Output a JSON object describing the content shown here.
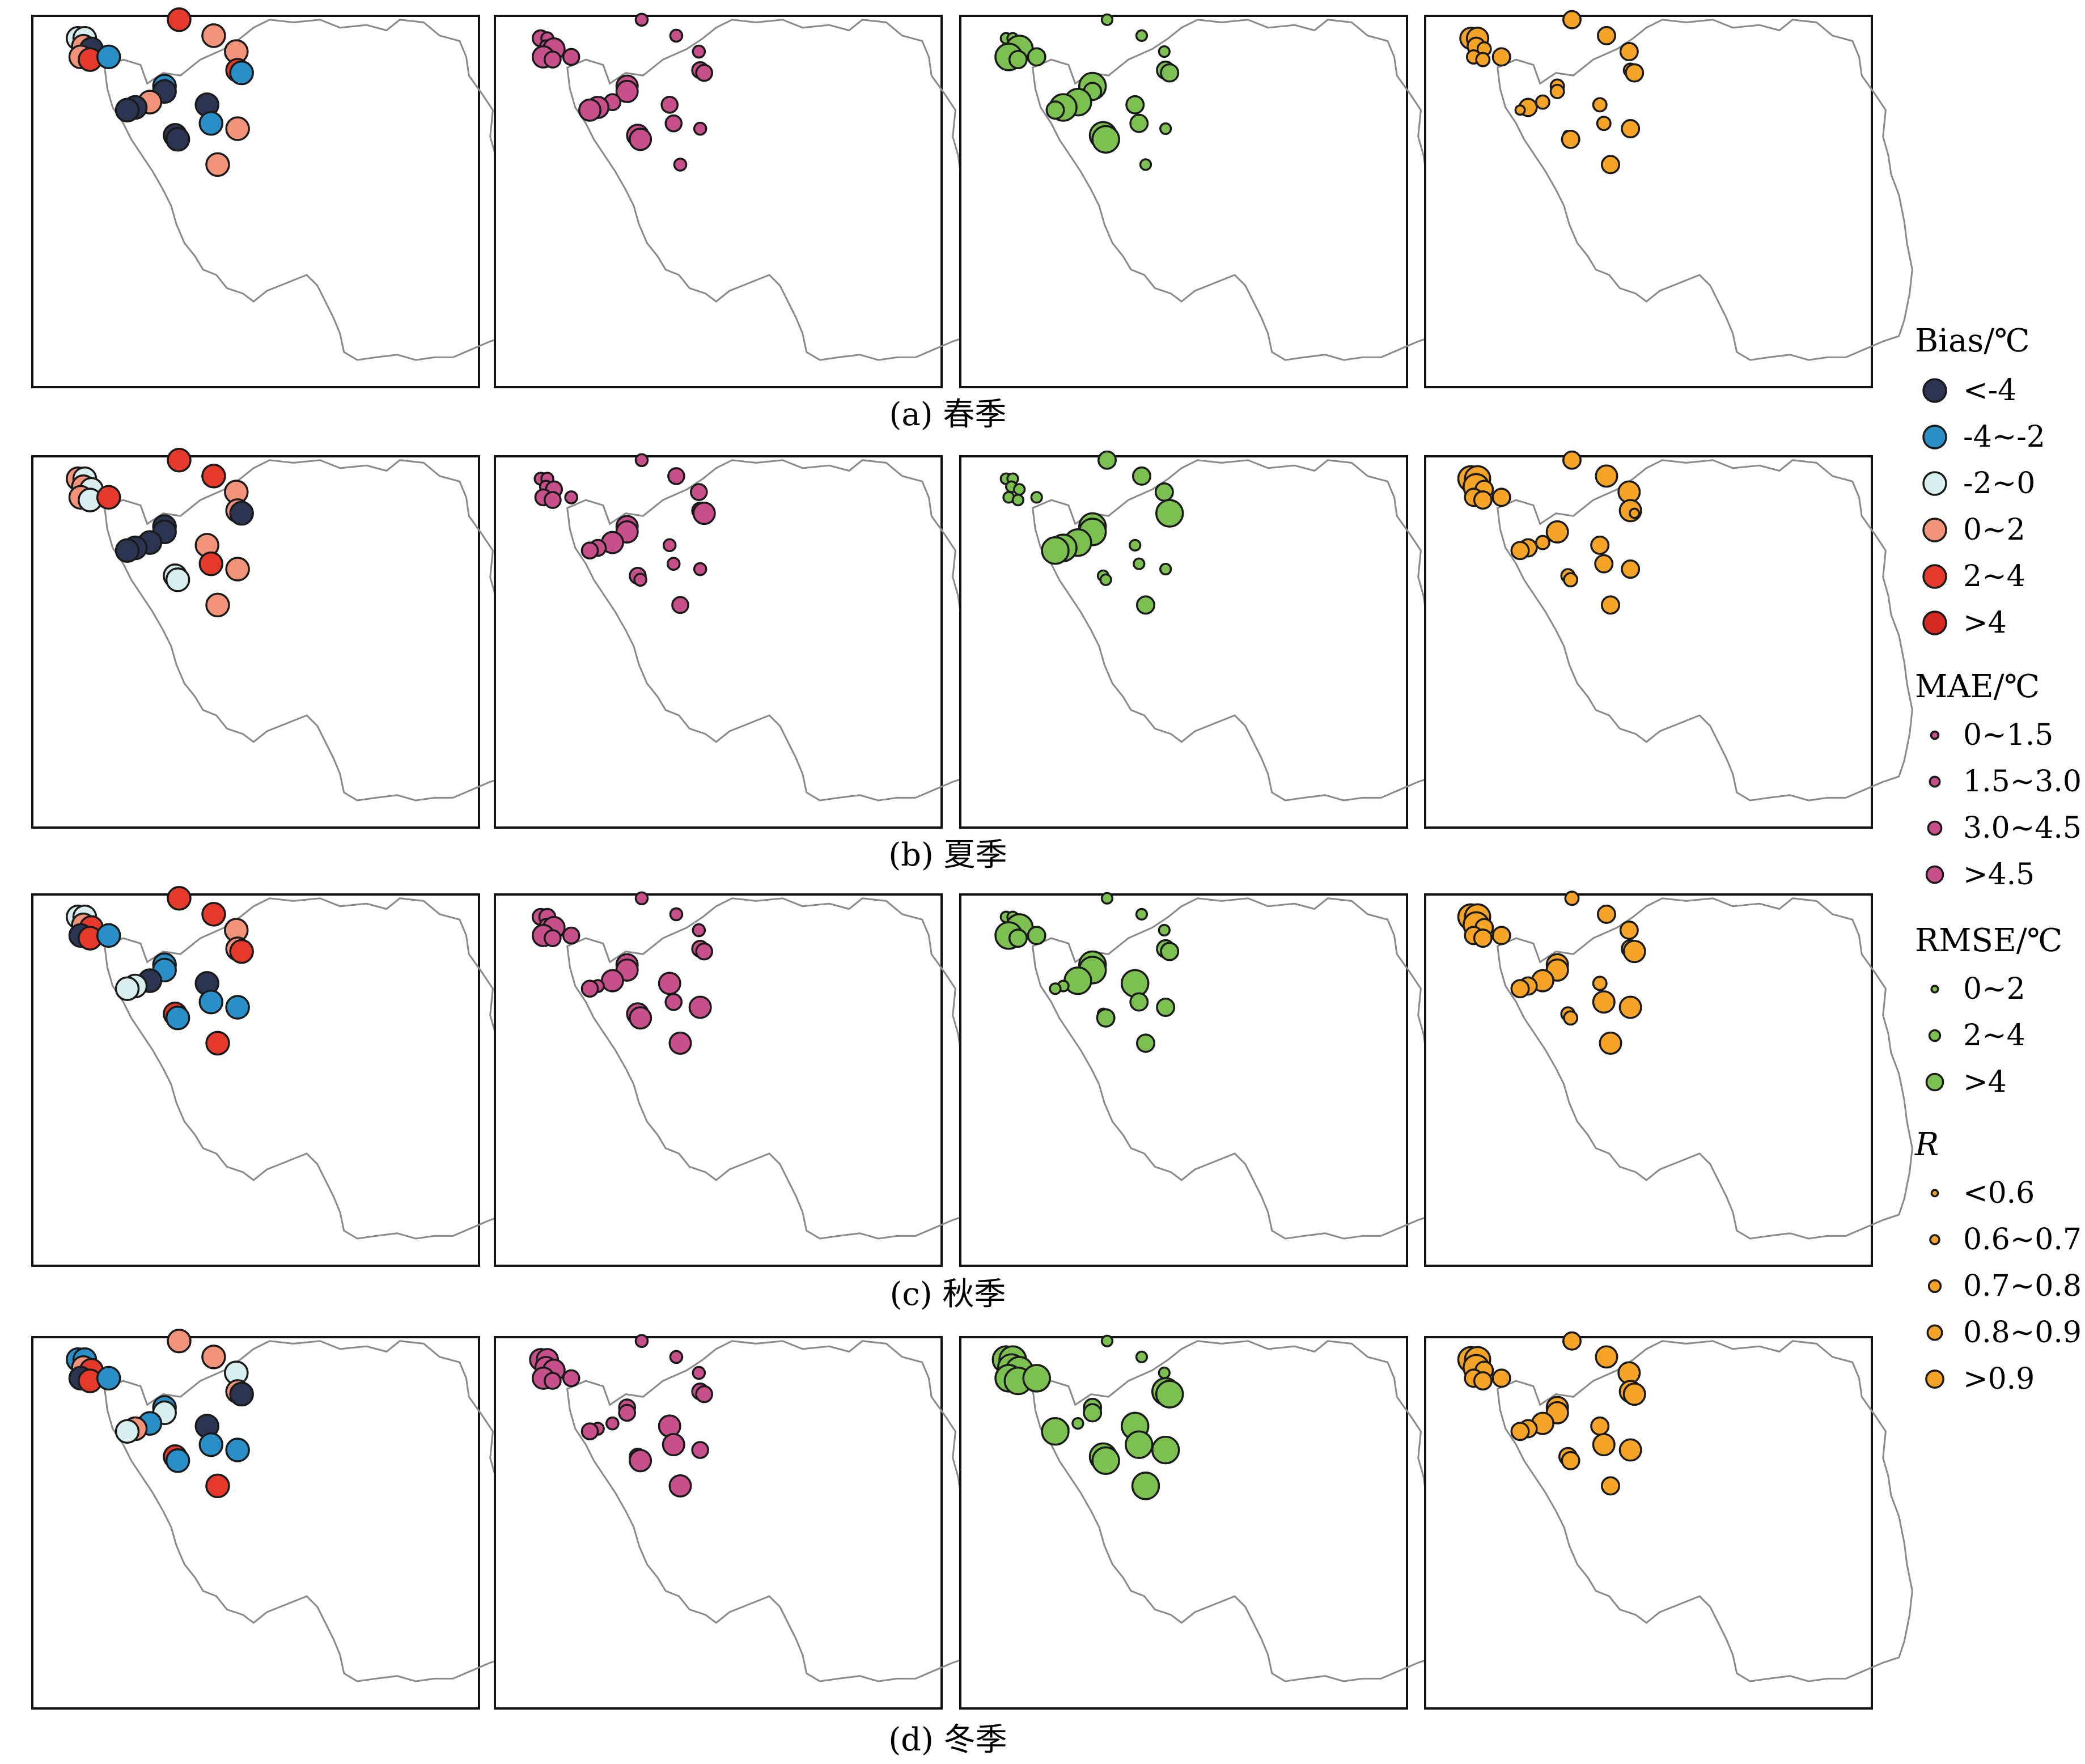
{
  "coastline_color": "#8a8a8a",
  "stroke_color": "#1a1a1a",
  "legend": {
    "bias": {
      "title": "Bias/℃",
      "items": [
        {
          "label": "<-4",
          "color": "#2b3450"
        },
        {
          "label": "-4~-2",
          "color": "#2a8fc7"
        },
        {
          "label": "-2~0",
          "color": "#d9eeee"
        },
        {
          "label": "0~2",
          "color": "#f2937a"
        },
        {
          "label": "2~4",
          "color": "#e5392b"
        },
        {
          "label": ">4",
          "color": "#d52a24"
        }
      ]
    },
    "mae": {
      "title": "MAE/℃",
      "color": "#c7508a",
      "items": [
        {
          "label": "0~1.5",
          "level": 1
        },
        {
          "label": "1.5~3.0",
          "level": 2
        },
        {
          "label": "3.0~4.5",
          "level": 3
        },
        {
          "label": ">4.5",
          "level": 4
        }
      ]
    },
    "rmse": {
      "title": "RMSE/℃",
      "color": "#7cc052",
      "items": [
        {
          "label": "0~2",
          "level": 1
        },
        {
          "label": "2~4",
          "level": 2
        },
        {
          "label": ">4",
          "level": 3
        }
      ]
    },
    "r": {
      "title": "R",
      "color": "#f6a428",
      "items": [
        {
          "label": "<0.6",
          "level": 1
        },
        {
          "label": "0.6~0.7",
          "level": 2
        },
        {
          "label": "0.7~0.8",
          "level": 3
        },
        {
          "label": "0.8~0.9",
          "level": 4
        },
        {
          "label": ">0.9",
          "level": 5
        }
      ]
    }
  },
  "rows": [
    {
      "caption": "(a) 春季",
      "bias": [
        "-2~0",
        "-2~0",
        "0~2",
        "<-4",
        "0~2",
        "2~4",
        "-4~-2",
        "2~4",
        "0~2",
        "0~2",
        "2~4",
        "-4~-2",
        "-4~-2",
        "<-4",
        "0~2",
        "<-4",
        "<-4",
        "<-4",
        "<-4",
        "<-4",
        "-4~-2",
        "0~2",
        "0~2"
      ],
      "mae": [
        2,
        1,
        1,
        3,
        3,
        2,
        2,
        1,
        1,
        1,
        2,
        2,
        3,
        3,
        2,
        3,
        3,
        3,
        3,
        2,
        2,
        1,
        1
      ],
      "rmse": [
        1,
        1,
        1,
        3,
        3,
        2,
        2,
        1,
        1,
        1,
        2,
        2,
        3,
        2,
        3,
        3,
        2,
        3,
        3,
        2,
        2,
        1,
        1
      ],
      "r": [
        4,
        4,
        3,
        2,
        2,
        2,
        3,
        3,
        3,
        3,
        2,
        3,
        2,
        2,
        2,
        3,
        1,
        1,
        3,
        2,
        2,
        3,
        3
      ]
    },
    {
      "caption": "(b) 夏季",
      "bias": [
        "0~2",
        "-2~0",
        "0~2",
        "-2~0",
        "0~2",
        "-2~0",
        "2~4",
        "2~4",
        "2~4",
        "0~2",
        "0~2",
        "<-4",
        "<-4",
        "<-4",
        "<-4",
        "<-4",
        "<-4",
        "-2~0",
        "-2~0",
        "0~2",
        "2~4",
        "0~2",
        "0~2"
      ],
      "mae": [
        1,
        1,
        1,
        2,
        2,
        2,
        1,
        1,
        2,
        2,
        2,
        3,
        3,
        3,
        3,
        2,
        2,
        2,
        1,
        1,
        1,
        1,
        2
      ],
      "rmse": [
        1,
        1,
        1,
        1,
        1,
        1,
        1,
        2,
        2,
        2,
        2,
        3,
        3,
        3,
        3,
        3,
        3,
        1,
        1,
        1,
        1,
        1,
        2
      ],
      "r": [
        5,
        5,
        5,
        3,
        3,
        3,
        3,
        3,
        4,
        4,
        4,
        1,
        1,
        4,
        2,
        3,
        3,
        2,
        2,
        3,
        3,
        3,
        3
      ]
    },
    {
      "caption": "(c) 秋季",
      "bias": [
        "-2~0",
        "-2~0",
        "0~2",
        "2~4",
        "<-4",
        "2~4",
        "-4~-2",
        "2~4",
        "2~4",
        "0~2",
        "0~2",
        "2~4",
        "-4~-2",
        "-4~-2",
        "<-4",
        "-2~0",
        "-2~0",
        "2~4",
        "-4~-2",
        "<-4",
        "-4~-2",
        "-4~-2",
        "2~4"
      ],
      "mae": [
        2,
        2,
        1,
        3,
        3,
        2,
        2,
        1,
        1,
        1,
        2,
        2,
        3,
        3,
        3,
        1,
        2,
        3,
        3,
        3,
        2,
        3,
        3
      ],
      "rmse": [
        1,
        1,
        1,
        3,
        3,
        2,
        2,
        1,
        1,
        1,
        2,
        2,
        3,
        3,
        3,
        1,
        1,
        1,
        2,
        3,
        2,
        2,
        2
      ],
      "r": [
        5,
        5,
        5,
        3,
        3,
        3,
        3,
        2,
        3,
        3,
        3,
        4,
        4,
        4,
        4,
        3,
        3,
        2,
        2,
        2,
        4,
        4,
        4
      ]
    },
    {
      "caption": "(d) 冬季",
      "bias": [
        "-4~-2",
        "-4~-2",
        "0~2",
        "2~4",
        "<-4",
        "2~4",
        "-4~-2",
        "0~2",
        "0~2",
        "-2~0",
        "0~2",
        "<-4",
        "-4~-2",
        "-2~0",
        "-4~-2",
        "0~2",
        "-2~0",
        "2~4",
        "-4~-2",
        "<-4",
        "-4~-2",
        "-4~-2",
        "2~4"
      ],
      "mae": [
        3,
        3,
        3,
        3,
        3,
        2,
        2,
        1,
        1,
        1,
        2,
        2,
        2,
        2,
        1,
        1,
        2,
        2,
        3,
        3,
        3,
        2,
        3
      ],
      "rmse": [
        3,
        3,
        3,
        3,
        3,
        3,
        3,
        1,
        1,
        1,
        3,
        3,
        2,
        2,
        1,
        1,
        3,
        3,
        3,
        3,
        3,
        3,
        3
      ],
      "r": [
        5,
        5,
        5,
        3,
        3,
        3,
        3,
        3,
        4,
        4,
        4,
        4,
        4,
        4,
        4,
        3,
        3,
        3,
        3,
        3,
        4,
        4,
        3
      ]
    }
  ]
}
